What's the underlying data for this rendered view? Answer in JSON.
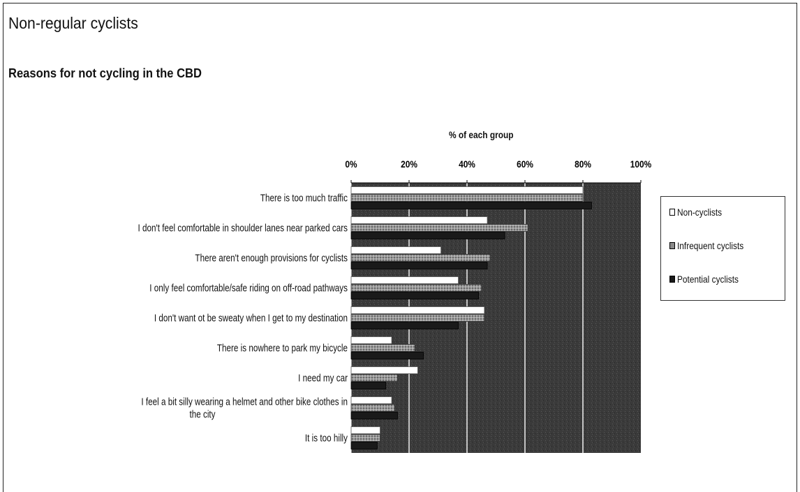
{
  "page": {
    "title": "Non-regular cyclists",
    "subtitle": "Reasons for not cycling in the CBD"
  },
  "chart_data": {
    "type": "bar",
    "orientation": "horizontal",
    "stacked": false,
    "xlabel": "% of each group",
    "xlim": [
      0,
      100
    ],
    "x_ticks": [
      "0%",
      "20%",
      "40%",
      "60%",
      "80%",
      "100%"
    ],
    "x_tick_values": [
      0,
      20,
      40,
      60,
      80,
      100
    ],
    "grid": true,
    "legend_position": "right",
    "categories": [
      [
        "There is too much traffic"
      ],
      [
        "I don't feel comfortable in shoulder lanes near parked cars"
      ],
      [
        "There aren't enough provisions for cyclists"
      ],
      [
        "I only feel comfortable/safe riding on off-road pathways"
      ],
      [
        "I don't want ot be sweaty when I get to my destination"
      ],
      [
        "There is nowhere to park my bicycle"
      ],
      [
        "I need my car"
      ],
      [
        "I feel a bit silly wearing a helmet and other bike clothes in",
        "the city"
      ],
      [
        "It is too hilly"
      ]
    ],
    "series": [
      {
        "name": "Non-cyclists",
        "values": [
          80,
          47,
          31,
          37,
          46,
          14,
          23,
          14,
          10
        ]
      },
      {
        "name": "Infrequent cyclists",
        "values": [
          80,
          61,
          48,
          45,
          46,
          22,
          16,
          15,
          10
        ]
      },
      {
        "name": "Potential cyclists",
        "values": [
          83,
          53,
          47,
          44,
          37,
          25,
          12,
          16,
          9
        ]
      }
    ],
    "colors": {
      "Non-cyclists": "#ffffff",
      "Infrequent cyclists": "#8a8a8a",
      "Potential cyclists": "#1a1a1a",
      "plot_background": "#3a3a3a",
      "gridline": "#f0f0f0"
    }
  },
  "legend": {
    "items": [
      {
        "label": "Non-cyclists",
        "color": "#ffffff"
      },
      {
        "label": "Infrequent cyclists",
        "color": "#8a8a8a"
      },
      {
        "label": "Potential cyclists",
        "color": "#1a1a1a"
      }
    ]
  }
}
